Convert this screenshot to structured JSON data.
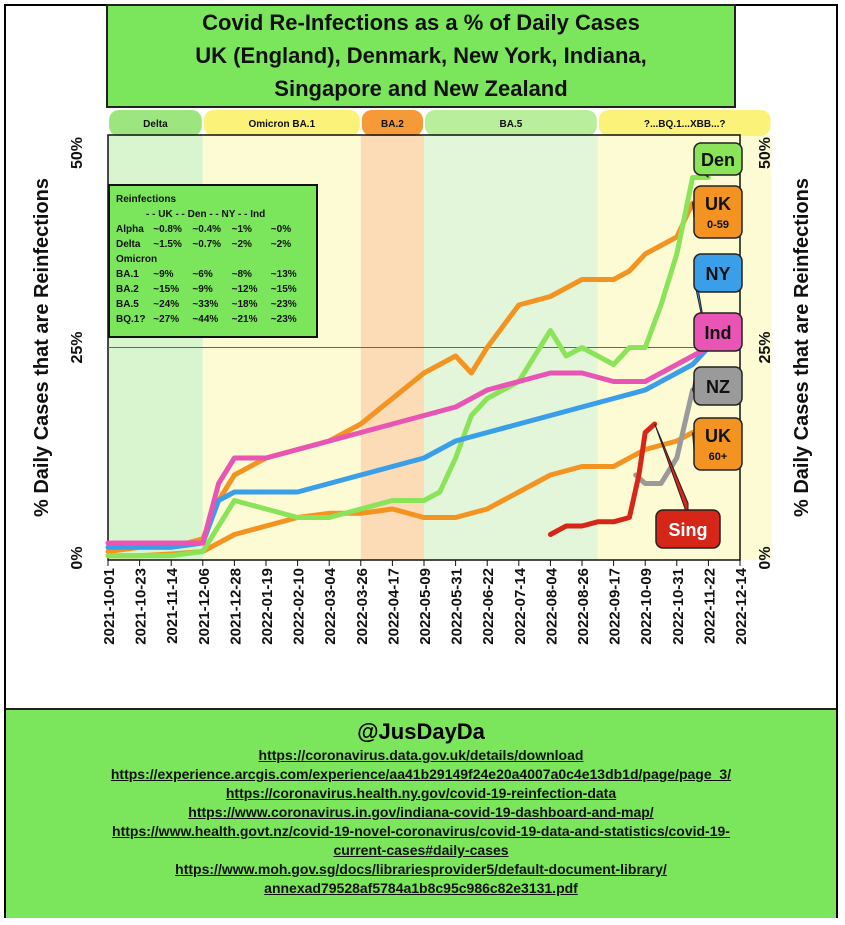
{
  "title_lines": [
    "Covid Re-Infections as a % of Daily Cases",
    "UK (England), Denmark, New York, Indiana,",
    "Singapore and New Zealand"
  ],
  "footer": {
    "handle": "@JusDayDa",
    "links": [
      "https://coronavirus.data.gov.uk/details/download",
      "https://experience.arcgis.com/experience/aa41b29149f24e20a4007a0c4e13db1d/page/page_3/",
      "https://coronavirus.health.ny.gov/covid-19-reinfection-data",
      "https://www.coronavirus.in.gov/indiana-covid-19-dashboard-and-map/",
      "https://www.health.govt.nz/covid-19-novel-coronavirus/covid-19-data-and-statistics/covid-19-",
      "current-cases#daily-cases",
      "https://www.moh.gov.sg/docs/librariesprovider5/default-document-library/",
      "annexad79528af5784a1b8c95c986c82e3131.pdf"
    ]
  },
  "reinfection_table": {
    "title": "Reinfections",
    "header": "- - UK - - Den - - NY - - Ind",
    "omicron_label": "Omicron",
    "rows_pre": [
      {
        "label": "Alpha",
        "values": [
          "~0.8%",
          "~0.4%",
          "~1%",
          "~0%"
        ]
      },
      {
        "label": "Delta",
        "values": [
          "~1.5%",
          "~0.7%",
          "~2%",
          "~2%"
        ]
      }
    ],
    "rows_omicron": [
      {
        "label": "BA.1",
        "values": [
          "~9%",
          "~6%",
          "~8%",
          "~13%"
        ]
      },
      {
        "label": "BA.2",
        "values": [
          "~15%",
          "~9%",
          "~12%",
          "~15%"
        ]
      },
      {
        "label": "BA.5",
        "values": [
          "~24%",
          "~33%",
          "~18%",
          "~23%"
        ]
      },
      {
        "label": "BQ.1?",
        "values": [
          "~27%",
          "~44%",
          "~21%",
          "~23%"
        ]
      }
    ]
  },
  "chart_data": {
    "type": "line",
    "ylabel": "% Daily Cases that are Reinfections",
    "ylim": [
      0,
      50
    ],
    "y_ticks": [
      "0%",
      "25%",
      "50%"
    ],
    "reference_line": 25,
    "x_ticks": [
      "2021-10-01",
      "2021-10-23",
      "2021-11-14",
      "2021-12-06",
      "2021-12-28",
      "2022-01-19",
      "2022-02-10",
      "2022-03-04",
      "2022-03-26",
      "2022-04-17",
      "2022-05-09",
      "2022-05-31",
      "2022-06-22",
      "2022-07-14",
      "2022-08-04",
      "2022-08-26",
      "2022-09-17",
      "2022-10-09",
      "2022-10-31",
      "2022-11-22",
      "2022-12-14"
    ],
    "periods": [
      {
        "label": "Delta",
        "start": 0,
        "end": 3,
        "color": "#d9f5cf",
        "tab": "#9de67f"
      },
      {
        "label": "Omicron BA.1",
        "start": 3,
        "end": 8,
        "color": "#fdfbd4",
        "tab": "#fbf27a"
      },
      {
        "label": "BA.2",
        "start": 8,
        "end": 10,
        "color": "#fbdcb6",
        "tab": "#f59a36"
      },
      {
        "label": "BA.5",
        "start": 10,
        "end": 15.5,
        "color": "#e3f6d9",
        "tab": "#b9ee9c"
      },
      {
        "label": "?...BQ.1...XBB...?",
        "start": 15.5,
        "end": 21,
        "color": "#fdfbd4",
        "tab": "#fbf27a"
      }
    ],
    "series": [
      {
        "name": "UK 0-59",
        "color": "#f39321",
        "x": [
          0,
          1,
          2,
          3,
          3.5,
          4,
          5,
          6,
          7,
          8,
          9,
          10,
          11,
          11.5,
          12,
          13,
          14,
          15,
          16,
          16.5,
          17,
          17.5,
          18,
          18.5
        ],
        "y": [
          1,
          1.5,
          1.5,
          2.5,
          7,
          10,
          12,
          13,
          14,
          16,
          19,
          22,
          24,
          22,
          25,
          30,
          31,
          33,
          33,
          34,
          36,
          37,
          38,
          42
        ]
      },
      {
        "name": "UK 60+",
        "color": "#f39321",
        "x": [
          0,
          1,
          2,
          3,
          4,
          5,
          6,
          7,
          8,
          9,
          10,
          11,
          12,
          13,
          14,
          15,
          16,
          17,
          18,
          18.5
        ],
        "y": [
          0.5,
          0.5,
          0.7,
          1,
          3,
          4,
          5,
          5.5,
          5.5,
          6,
          5,
          5,
          6,
          8,
          10,
          11,
          11,
          13,
          14,
          15
        ]
      },
      {
        "name": "Den",
        "color": "#8be35a",
        "x": [
          0,
          1,
          2,
          3,
          3.5,
          4,
          5,
          6,
          7,
          8,
          9,
          10,
          10.5,
          11,
          11.5,
          12,
          13,
          14,
          14.5,
          15,
          16,
          16.5,
          17,
          17.5,
          18,
          18.5,
          19
        ],
        "y": [
          0.5,
          0.5,
          0.5,
          1,
          4,
          7,
          6,
          5,
          5,
          6,
          7,
          7,
          8,
          12,
          17,
          19,
          21,
          27,
          24,
          25,
          23,
          25,
          25,
          30,
          36,
          45,
          45
        ]
      },
      {
        "name": "NY",
        "color": "#3a9ee8",
        "x": [
          0,
          1,
          2,
          3,
          3.5,
          4,
          5,
          6,
          7,
          8,
          9,
          10,
          11,
          12,
          13,
          14,
          15,
          16,
          17,
          18,
          18.5,
          19
        ],
        "y": [
          1.5,
          1.5,
          1.5,
          2,
          7,
          8,
          8,
          8,
          9,
          10,
          11,
          12,
          14,
          15,
          16,
          17,
          18,
          19,
          20,
          22,
          23,
          25
        ]
      },
      {
        "name": "Ind",
        "color": "#e855b4",
        "x": [
          0,
          1,
          2,
          3,
          3.5,
          4,
          5,
          6,
          7,
          8,
          9,
          10,
          11,
          12,
          13,
          14,
          15,
          16,
          17,
          18,
          18.5,
          19
        ],
        "y": [
          2,
          2,
          2,
          2,
          9,
          12,
          12,
          13,
          14,
          15,
          16,
          17,
          18,
          20,
          21,
          22,
          22,
          21,
          21,
          23,
          24,
          25
        ]
      },
      {
        "name": "NZ",
        "color": "#9a9a9a",
        "x": [
          16.7,
          17,
          17.5,
          18,
          18.5
        ],
        "y": [
          10,
          9,
          9,
          12,
          20
        ]
      },
      {
        "name": "Sing",
        "color": "#d62618",
        "x": [
          14,
          14.5,
          15,
          15.5,
          16,
          16.5,
          16.8,
          17,
          17.3
        ],
        "y": [
          3,
          4,
          4,
          4.5,
          4.5,
          5,
          10,
          15,
          16
        ]
      }
    ],
    "end_labels": [
      {
        "name": "Den",
        "text": "Den",
        "sub": "",
        "color": "#8be35a"
      },
      {
        "name": "UK 0-59",
        "text": "UK",
        "sub": "0-59",
        "color": "#f39321"
      },
      {
        "name": "NY",
        "text": "NY",
        "sub": "",
        "color": "#3a9ee8"
      },
      {
        "name": "Ind",
        "text": "Ind",
        "sub": "",
        "color": "#e855b4"
      },
      {
        "name": "NZ",
        "text": "NZ",
        "sub": "",
        "color": "#9a9a9a"
      },
      {
        "name": "UK 60+",
        "text": "UK",
        "sub": "60+",
        "color": "#f39321"
      },
      {
        "name": "Sing",
        "text": "Sing",
        "sub": "",
        "color": "#d62618"
      }
    ]
  }
}
